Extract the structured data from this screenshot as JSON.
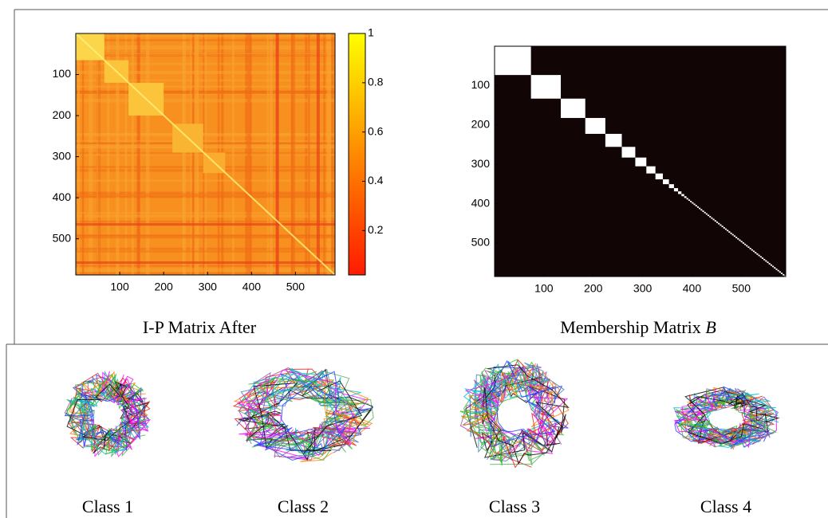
{
  "panels": [
    {
      "caption": "I-P Matrix After",
      "xlim": [
        0,
        590
      ],
      "ylim": [
        0,
        588
      ],
      "xticks": [
        100,
        200,
        300,
        400,
        500
      ],
      "yticks": [
        100,
        200,
        300,
        400,
        500
      ],
      "colorbar": {
        "lim": [
          0.02,
          1
        ],
        "ticks": [
          0.2,
          0.4,
          0.6,
          0.8,
          1
        ]
      }
    },
    {
      "caption": "Membership Matrix",
      "caption_symbol": "B",
      "xlim": [
        0,
        590
      ],
      "ylim": [
        0,
        585
      ],
      "xticks": [
        100,
        200,
        300,
        400,
        500
      ],
      "yticks": [
        100,
        200,
        300,
        400,
        500
      ]
    }
  ],
  "classes": [
    "Class 1",
    "Class 2",
    "Class 3",
    "Class 4"
  ]
}
